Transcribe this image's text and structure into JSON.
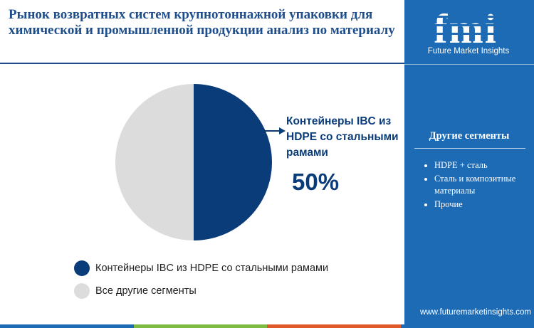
{
  "title": "Рынок возвратных систем крупнотоннажной упаковки для химической и промышленной продукции анализ по материалу",
  "chart_data": {
    "type": "pie",
    "title": "Рынок возвратных систем крупнотоннажной упаковки для химической и промышленной продукции анализ по материалу",
    "slices": [
      {
        "label": "Контейнеры IBC из HDPE со стальными рамами",
        "value": 50,
        "color": "#0b3c7a"
      },
      {
        "label": "Все другие сегменты",
        "value": 50,
        "color": "#dcdcdc"
      }
    ],
    "highlight": {
      "label": "Контейнеры IBC из HDPE со стальными рамами",
      "value_label": "50%"
    },
    "legend_position": "bottom-left"
  },
  "legend": {
    "items": [
      {
        "label": "Контейнеры IBC из HDPE со стальными рамами",
        "color": "#0b3c7a"
      },
      {
        "label": "Все другие сегменты",
        "color": "#dcdcdc"
      }
    ]
  },
  "sidebar": {
    "logo_text": "fmi",
    "logo_subtitle": "Future Market Insights",
    "segments_title": "Другие сегменты",
    "segments": [
      "HDPE + сталь",
      "Сталь и композитные материалы",
      "Прочие"
    ],
    "website": "www.futuremarketinsights.com",
    "background_color": "#1d6bb5"
  },
  "bottom_bar_colors": [
    "#1d6bb5",
    "#7dbb42",
    "#e0592a",
    "#1d6bb5"
  ]
}
